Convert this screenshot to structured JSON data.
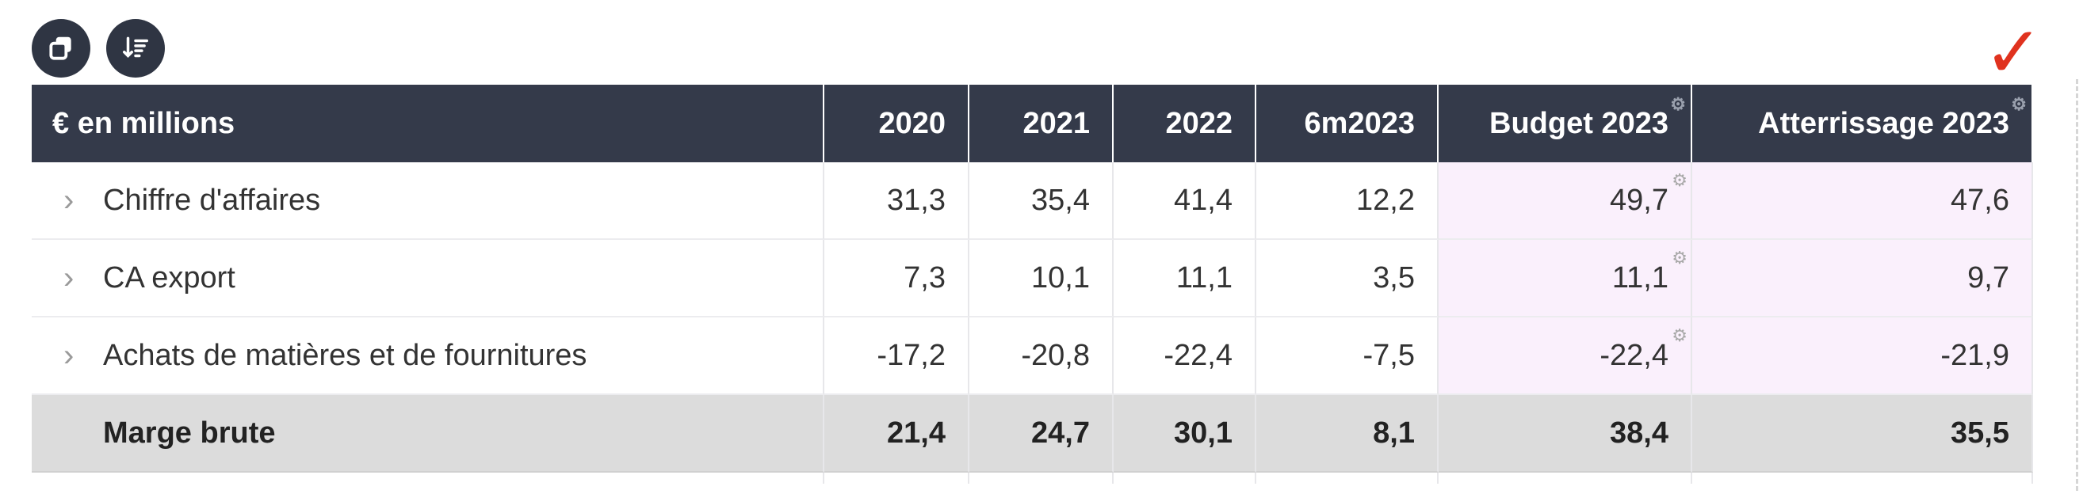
{
  "toolbar": {
    "buttons": [
      {
        "icon": "copy-icon"
      },
      {
        "icon": "sort-icon"
      }
    ]
  },
  "table": {
    "header": [
      "€ en millions",
      "2020",
      "2021",
      "2022",
      "6m2023",
      "Budget 2023",
      "Atterrissage 2023"
    ],
    "rows": [
      {
        "label": "Chiffre d'affaires",
        "values": [
          "31,3",
          "35,4",
          "41,4",
          "12,2",
          "49,7",
          "47,6"
        ]
      },
      {
        "label": "CA export",
        "values": [
          "7,3",
          "10,1",
          "11,1",
          "3,5",
          "11,1",
          "9,7"
        ]
      },
      {
        "label": "Achats de matières et de fournitures",
        "values": [
          "-17,2",
          "-20,8",
          "-22,4",
          "-7,5",
          "-22,4",
          "-21,9"
        ]
      },
      {
        "label": "Marge brute",
        "values": [
          "21,4",
          "24,7",
          "30,1",
          "8,1",
          "38,4",
          "35,5"
        ]
      }
    ]
  },
  "colors": {
    "header_bg": "#343a4a",
    "highlight_bg": "#faf0fc",
    "total_row_bg": "#dcdcdc",
    "checkmark": "#e0321e"
  }
}
